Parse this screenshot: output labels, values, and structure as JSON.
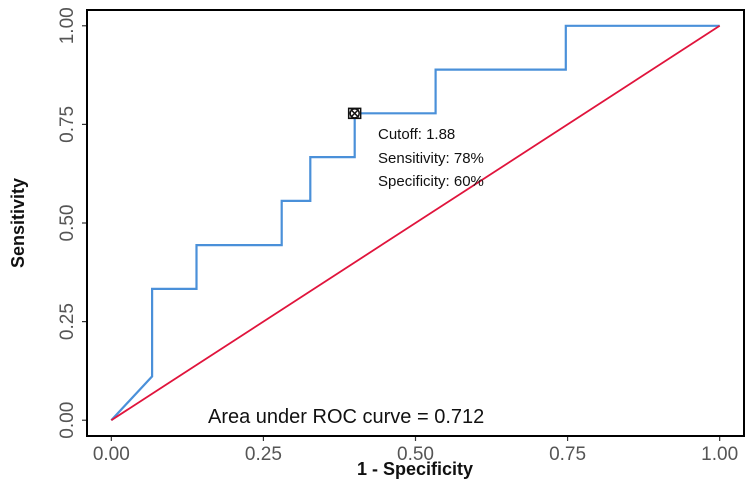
{
  "chart_data": {
    "type": "line",
    "xlabel": "1 - Specificity",
    "ylabel": "Sensitivity",
    "xlim": [
      -0.04,
      1.04
    ],
    "ylim": [
      -0.04,
      1.04
    ],
    "x_ticks": [
      "0.00",
      "0.25",
      "0.50",
      "0.75",
      "1.00"
    ],
    "y_ticks": [
      "0.00",
      "0.25",
      "0.50",
      "0.75",
      "1.00"
    ],
    "series": [
      {
        "color": "#4a90d9",
        "x": [
          0.0,
          0.067,
          0.067,
          0.14,
          0.14,
          0.28,
          0.28,
          0.327,
          0.327,
          0.4,
          0.4,
          0.533,
          0.533,
          0.747,
          0.747,
          1.0
        ],
        "y": [
          0.0,
          0.111,
          0.333,
          0.333,
          0.444,
          0.444,
          0.556,
          0.556,
          0.667,
          0.667,
          0.778,
          0.778,
          0.889,
          0.889,
          1.0,
          1.0
        ]
      },
      {
        "color": "#e0143c",
        "x": [
          0.0,
          1.0
        ],
        "y": [
          0.0,
          1.0
        ]
      }
    ],
    "cutoff_point": {
      "x": 0.4,
      "y": 0.778
    },
    "annotations": {
      "cutoff": "Cutoff: 1.88",
      "sensitivity": "Sensitivity: 78%",
      "specificity": "Specificity: 60%",
      "auc": "Area under ROC curve =  0.712"
    }
  }
}
